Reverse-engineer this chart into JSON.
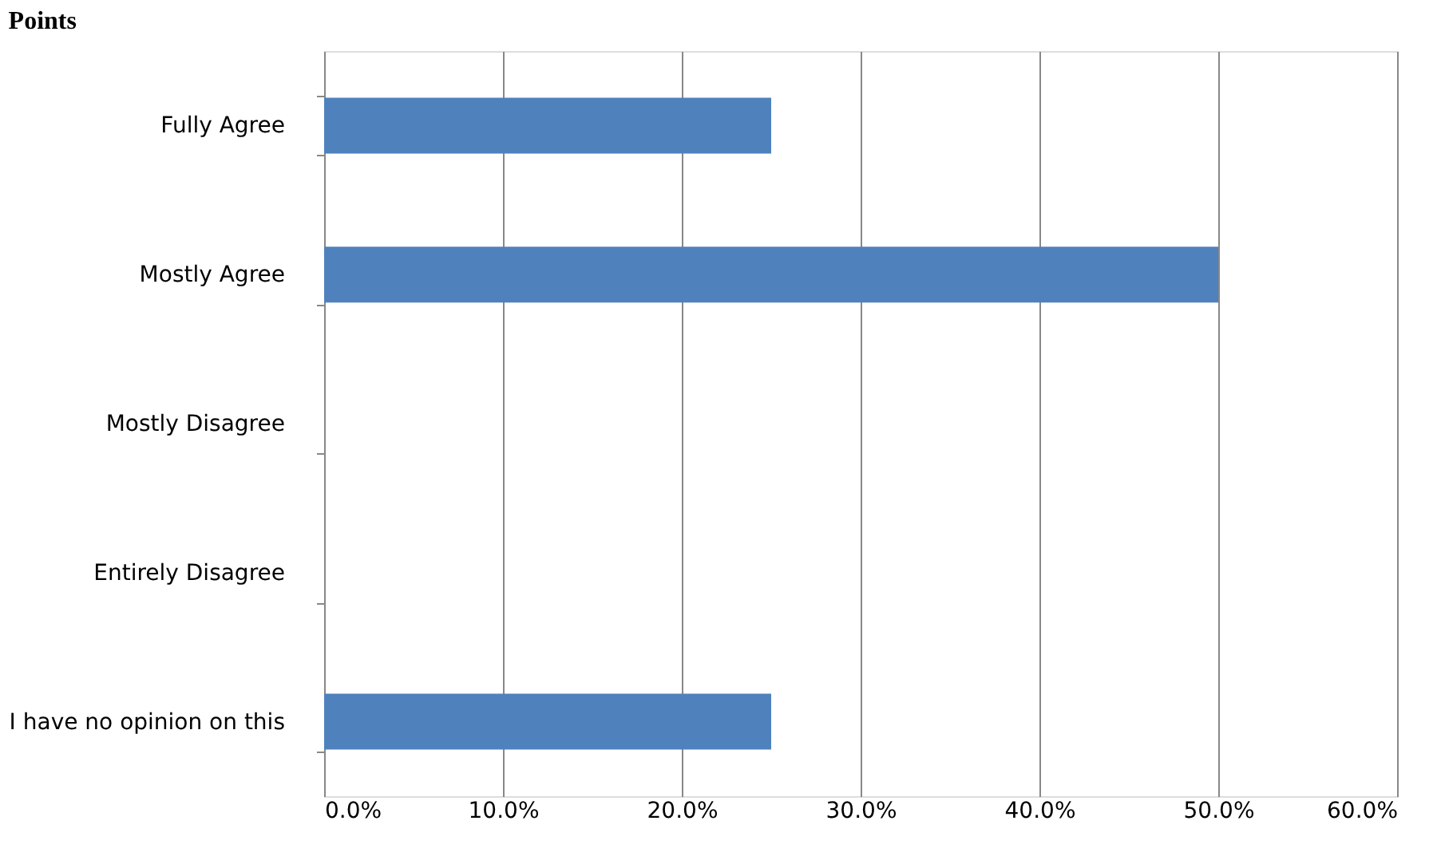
{
  "chart_data": {
    "type": "bar",
    "orientation": "horizontal",
    "title": "Points",
    "categories": [
      "Fully Agree",
      "Mostly Agree",
      "Mostly Disagree",
      "Entirely Disagree",
      "I have no opinion on this"
    ],
    "values": [
      25,
      50,
      0,
      0,
      25
    ],
    "color": "#4f81bd",
    "xlim": [
      0,
      60
    ],
    "xticks": [
      {
        "value": 0,
        "label": "0.0%"
      },
      {
        "value": 10,
        "label": "10.0%"
      },
      {
        "value": 20,
        "label": "20.0%"
      },
      {
        "value": 30,
        "label": "30.0%"
      },
      {
        "value": 40,
        "label": "40.0%"
      },
      {
        "value": 50,
        "label": "50.0%"
      },
      {
        "value": 60,
        "label": "60.0%"
      }
    ],
    "grid": "x"
  }
}
